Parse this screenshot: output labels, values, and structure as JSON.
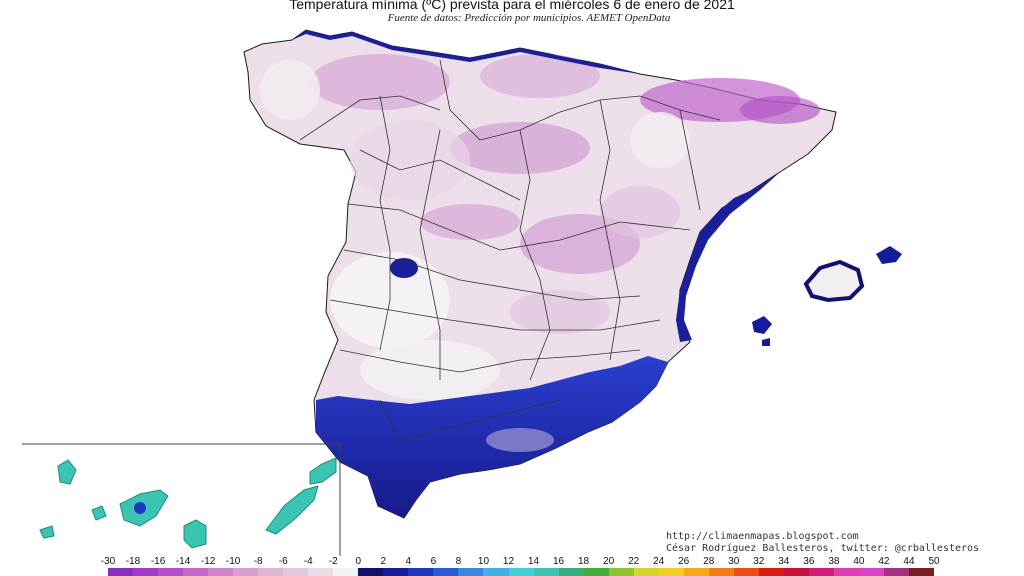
{
  "header": {
    "title": "Temperatura mínima (ºC) prevista para el miércoles 6 de enero de 2021",
    "subtitle": "Fuente de datos: Predicción por municipios. AEMET OpenData"
  },
  "credits": {
    "url": "http://climaenmapas.blogspot.com",
    "author": "César Rodríguez Ballesteros, twitter: @crballesteros"
  },
  "legend": {
    "labels": [
      "-30",
      "-18",
      "-16",
      "-14",
      "-12",
      "-10",
      "-8",
      "-6",
      "-4",
      "-2",
      "0",
      "2",
      "4",
      "6",
      "8",
      "10",
      "12",
      "14",
      "16",
      "18",
      "20",
      "22",
      "24",
      "26",
      "28",
      "30",
      "32",
      "34",
      "36",
      "38",
      "40",
      "42",
      "44",
      "50"
    ],
    "colors": [
      "#8a2fbf",
      "#a23cc7",
      "#b64fcc",
      "#c768c8",
      "#d184cc",
      "#d89fce",
      "#dcb6d2",
      "#e1cadb",
      "#e9dde6",
      "#f2f2f2",
      "#10106e",
      "#141c9a",
      "#1e38c4",
      "#2a5ad6",
      "#3a86e0",
      "#42b0e4",
      "#3fd0d8",
      "#3cc4b2",
      "#36b07e",
      "#3fae3c",
      "#8ec430",
      "#d6d62a",
      "#f2d020",
      "#f6a81a",
      "#f27c16",
      "#ec4e14",
      "#d81c14",
      "#c8103c",
      "#d41c7c",
      "#e03cae",
      "#d844c8",
      "#a83080",
      "#7a1c22"
    ]
  },
  "regions": {
    "peninsula": "península",
    "canarias": "islas-canarias",
    "baleares": "islas-baleares"
  },
  "palette": {
    "cold_low": "#b94dc4",
    "cold_mid": "#dcb6d2",
    "near_zero": "#f2f2f2",
    "warm_coast": "#1e38c4",
    "deep_coast": "#10106e",
    "canarias": "#3cc4b2"
  }
}
